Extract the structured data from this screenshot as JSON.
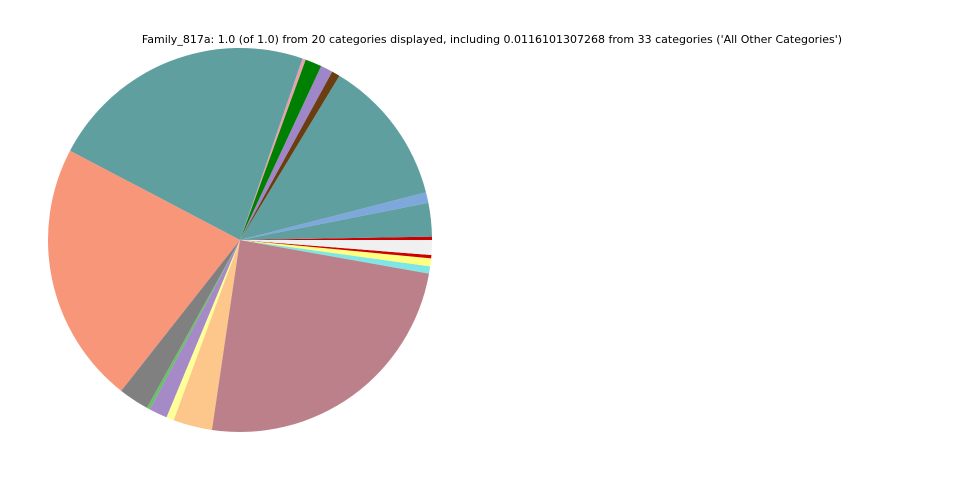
{
  "chart_data": {
    "type": "pie",
    "title": "Family_817a: 1.0 (of 1.0) from 20 categories displayed, including 0.0116101307268 from 33 categories ('All Other Categories')",
    "values": [
      0.0028,
      0.0283,
      0.0089,
      0.1236,
      0.0069,
      0.0103,
      0.0139,
      0.0028,
      0.2261,
      0.2211,
      0.0256,
      0.0028,
      0.0153,
      0.0064,
      0.0328,
      0.2456,
      0.0061,
      0.0067,
      0.0028,
      0.0125
    ],
    "colors": [
      "#cc0000",
      "#5f9f9f",
      "#7ea8dc",
      "#5f9f9f",
      "#6b3e12",
      "#9e86c8",
      "#008000",
      "#e8a0b0",
      "#5f9f9f",
      "#f8967a",
      "#808080",
      "#6abf69",
      "#a68ac7",
      "#ffff99",
      "#fdc68a",
      "#bc808a",
      "#7fe5e5",
      "#ffff80",
      "#cc0000",
      "#f0f0f0"
    ]
  }
}
